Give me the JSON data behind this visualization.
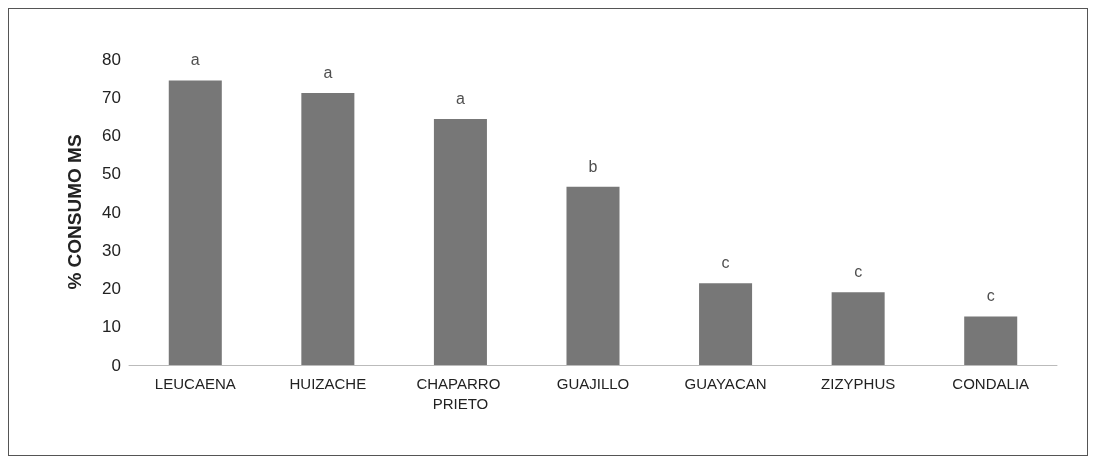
{
  "chart_data": {
    "type": "bar",
    "ylabel": "% CONSUMO MS",
    "categories": [
      "LEUCAENA",
      "HUIZACHE",
      "CHAPARRO PRIETO",
      "GUAJILLO",
      "GUAYACAN",
      "ZIZYPHUS",
      "CONDALIA"
    ],
    "values": [
      74.4,
      71.1,
      64.3,
      46.6,
      21.4,
      19.0,
      12.7
    ],
    "color": "#777777",
    "ylim": [
      0,
      80
    ],
    "yticks": [
      0,
      10,
      20,
      30,
      40,
      50,
      60,
      70,
      80
    ],
    "grid": false,
    "annotations": [
      {
        "text": "a",
        "x": "LEUCAENA",
        "y": 74.4
      },
      {
        "text": "a",
        "x": "HUIZACHE",
        "y": 71.1
      },
      {
        "text": "a",
        "x": "CHAPARRO PRIETO",
        "y": 64.3
      },
      {
        "text": "b",
        "x": "GUAJILLO",
        "y": 46.6
      },
      {
        "text": "c",
        "x": "GUAYACAN",
        "y": 21.4
      },
      {
        "text": "c",
        "x": "ZIZYPHUS",
        "y": 19.0
      },
      {
        "text": "c",
        "x": "CONDALIA",
        "y": 12.7
      }
    ]
  }
}
